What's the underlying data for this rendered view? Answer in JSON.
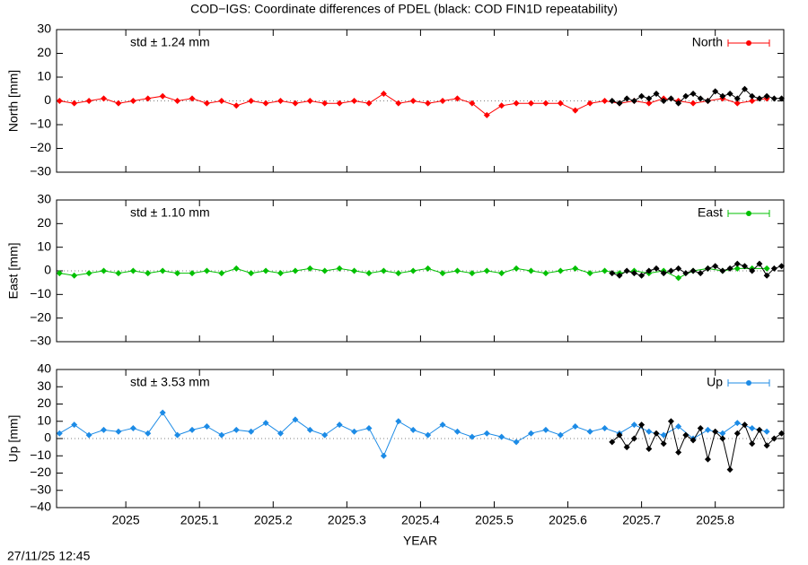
{
  "title": "COD−IGS: Coordinate differences of PDEL (black: COD FIN1D repeatability)",
  "timestamp": "27/11/25 12:45",
  "chart_data": [
    {
      "type": "line",
      "ylabel": "North [mm]",
      "annotation": "std ± 1.24 mm",
      "annotation_color": "#ff0000",
      "legend": "top-right",
      "xlim": [
        2024.906,
        2025.893
      ],
      "xticks": [
        2025,
        2025.1,
        2025.2,
        2025.3,
        2025.4,
        2025.5,
        2025.6,
        2025.7,
        2025.8
      ],
      "ylim": [
        -30,
        30
      ],
      "yticks": [
        {
          "value": -30,
          "label": "−30"
        },
        {
          "value": -20,
          "label": "−20"
        },
        {
          "value": -10,
          "label": "−10"
        },
        0,
        10,
        20,
        30
      ],
      "series": [
        {
          "name": "North",
          "color": "#ff0000",
          "x": [
            2024.91,
            2024.93,
            2024.95,
            2024.97,
            2024.99,
            2025.01,
            2025.03,
            2025.05,
            2025.07,
            2025.09,
            2025.11,
            2025.13,
            2025.15,
            2025.17,
            2025.19,
            2025.21,
            2025.23,
            2025.25,
            2025.27,
            2025.29,
            2025.31,
            2025.33,
            2025.35,
            2025.37,
            2025.39,
            2025.41,
            2025.43,
            2025.45,
            2025.47,
            2025.49,
            2025.51,
            2025.53,
            2025.55,
            2025.57,
            2025.59,
            2025.61,
            2025.63,
            2025.65,
            2025.67,
            2025.69,
            2025.71,
            2025.73,
            2025.75,
            2025.77,
            2025.79,
            2025.81,
            2025.83,
            2025.85,
            2025.87
          ],
          "values": [
            0,
            -1,
            0,
            1,
            -1,
            0,
            1,
            2,
            0,
            1,
            -1,
            0,
            -2,
            0,
            -1,
            0,
            -1,
            0,
            -1,
            -1,
            0,
            -1,
            3,
            -1,
            0,
            -1,
            0,
            1,
            -1,
            -6,
            -2,
            -1,
            -1,
            -1,
            -1,
            -4,
            -1,
            0,
            -1,
            0,
            -1,
            1,
            0,
            -1,
            0,
            1,
            -1,
            0,
            1
          ]
        },
        {
          "color": "#000000",
          "x": [
            2025.66,
            2025.67,
            2025.68,
            2025.69,
            2025.7,
            2025.71,
            2025.72,
            2025.73,
            2025.74,
            2025.75,
            2025.76,
            2025.77,
            2025.78,
            2025.79,
            2025.8,
            2025.81,
            2025.82,
            2025.83,
            2025.84,
            2025.85,
            2025.86,
            2025.87,
            2025.88,
            2025.89
          ],
          "values": [
            0,
            -1,
            1,
            0,
            2,
            1,
            3,
            0,
            1,
            -1,
            2,
            3,
            1,
            0,
            4,
            2,
            3,
            1,
            5,
            2,
            1,
            2,
            1,
            1
          ]
        }
      ]
    },
    {
      "type": "line",
      "ylabel": "East [mm]",
      "annotation": "std ± 1.10 mm",
      "annotation_color": "#00c000",
      "legend": "top-right",
      "xlim": [
        2024.906,
        2025.893
      ],
      "xticks": [
        2025,
        2025.1,
        2025.2,
        2025.3,
        2025.4,
        2025.5,
        2025.6,
        2025.7,
        2025.8
      ],
      "ylim": [
        -30,
        30
      ],
      "yticks": [
        {
          "value": -30,
          "label": "−30"
        },
        {
          "value": -20,
          "label": "−20"
        },
        {
          "value": -10,
          "label": "−10"
        },
        0,
        10,
        20,
        30
      ],
      "series": [
        {
          "name": "East",
          "color": "#00c000",
          "x": [
            2024.91,
            2024.93,
            2024.95,
            2024.97,
            2024.99,
            2025.01,
            2025.03,
            2025.05,
            2025.07,
            2025.09,
            2025.11,
            2025.13,
            2025.15,
            2025.17,
            2025.19,
            2025.21,
            2025.23,
            2025.25,
            2025.27,
            2025.29,
            2025.31,
            2025.33,
            2025.35,
            2025.37,
            2025.39,
            2025.41,
            2025.43,
            2025.45,
            2025.47,
            2025.49,
            2025.51,
            2025.53,
            2025.55,
            2025.57,
            2025.59,
            2025.61,
            2025.63,
            2025.65,
            2025.67,
            2025.69,
            2025.71,
            2025.73,
            2025.75,
            2025.77,
            2025.79,
            2025.81,
            2025.83,
            2025.85,
            2025.87
          ],
          "values": [
            -1,
            -2,
            -1,
            0,
            -1,
            0,
            -1,
            0,
            -1,
            -1,
            0,
            -1,
            1,
            -1,
            0,
            -1,
            0,
            1,
            0,
            1,
            0,
            -1,
            0,
            -1,
            0,
            1,
            -1,
            0,
            -1,
            0,
            -1,
            1,
            0,
            -1,
            0,
            1,
            -1,
            0,
            -1,
            0,
            -1,
            0,
            -3,
            0,
            1,
            0,
            1,
            1,
            1
          ]
        },
        {
          "color": "#000000",
          "x": [
            2025.66,
            2025.67,
            2025.68,
            2025.69,
            2025.7,
            2025.71,
            2025.72,
            2025.73,
            2025.74,
            2025.75,
            2025.76,
            2025.77,
            2025.78,
            2025.79,
            2025.8,
            2025.81,
            2025.82,
            2025.83,
            2025.84,
            2025.85,
            2025.86,
            2025.87,
            2025.88,
            2025.89
          ],
          "values": [
            -1,
            -2,
            0,
            -1,
            -2,
            0,
            1,
            -1,
            0,
            1,
            -1,
            0,
            -1,
            1,
            2,
            0,
            1,
            3,
            2,
            0,
            3,
            -2,
            1,
            2
          ]
        }
      ]
    },
    {
      "type": "line",
      "ylabel": "Up [mm]",
      "xlabel": "YEAR",
      "annotation": "std ± 3.53 mm",
      "annotation_color": "#1c8be6",
      "legend": "top-right",
      "xlim": [
        2024.906,
        2025.893
      ],
      "xticks": [
        2025,
        2025.1,
        2025.2,
        2025.3,
        2025.4,
        2025.5,
        2025.6,
        2025.7,
        2025.8
      ],
      "ylim": [
        -40,
        40
      ],
      "yticks": [
        {
          "value": -40,
          "label": "−40"
        },
        {
          "value": -30,
          "label": "−30"
        },
        {
          "value": -20,
          "label": "−20"
        },
        {
          "value": -10,
          "label": "−10"
        },
        0,
        10,
        20,
        30,
        40
      ],
      "series": [
        {
          "name": "Up",
          "color": "#1c8be6",
          "x": [
            2024.91,
            2024.93,
            2024.95,
            2024.97,
            2024.99,
            2025.01,
            2025.03,
            2025.05,
            2025.07,
            2025.09,
            2025.11,
            2025.13,
            2025.15,
            2025.17,
            2025.19,
            2025.21,
            2025.23,
            2025.25,
            2025.27,
            2025.29,
            2025.31,
            2025.33,
            2025.35,
            2025.37,
            2025.39,
            2025.41,
            2025.43,
            2025.45,
            2025.47,
            2025.49,
            2025.51,
            2025.53,
            2025.55,
            2025.57,
            2025.59,
            2025.61,
            2025.63,
            2025.65,
            2025.67,
            2025.69,
            2025.71,
            2025.73,
            2025.75,
            2025.77,
            2025.79,
            2025.81,
            2025.83,
            2025.85,
            2025.87
          ],
          "values": [
            3,
            8,
            2,
            5,
            4,
            6,
            3,
            15,
            2,
            5,
            7,
            2,
            5,
            4,
            9,
            3,
            11,
            5,
            2,
            8,
            4,
            6,
            -10,
            10,
            5,
            2,
            8,
            4,
            1,
            3,
            1,
            -2,
            3,
            5,
            2,
            7,
            4,
            6,
            3,
            8,
            4,
            2,
            7,
            0,
            5,
            3,
            9,
            6,
            4
          ]
        },
        {
          "color": "#000000",
          "x": [
            2025.66,
            2025.67,
            2025.68,
            2025.69,
            2025.7,
            2025.71,
            2025.72,
            2025.73,
            2025.74,
            2025.75,
            2025.76,
            2025.77,
            2025.78,
            2025.79,
            2025.8,
            2025.81,
            2025.82,
            2025.83,
            2025.84,
            2025.85,
            2025.86,
            2025.87,
            2025.88,
            2025.89
          ],
          "values": [
            -2,
            2,
            -5,
            0,
            8,
            -6,
            3,
            -3,
            10,
            -8,
            2,
            -1,
            6,
            -12,
            4,
            0,
            -18,
            3,
            8,
            -3,
            5,
            -4,
            0,
            3
          ]
        }
      ]
    }
  ]
}
